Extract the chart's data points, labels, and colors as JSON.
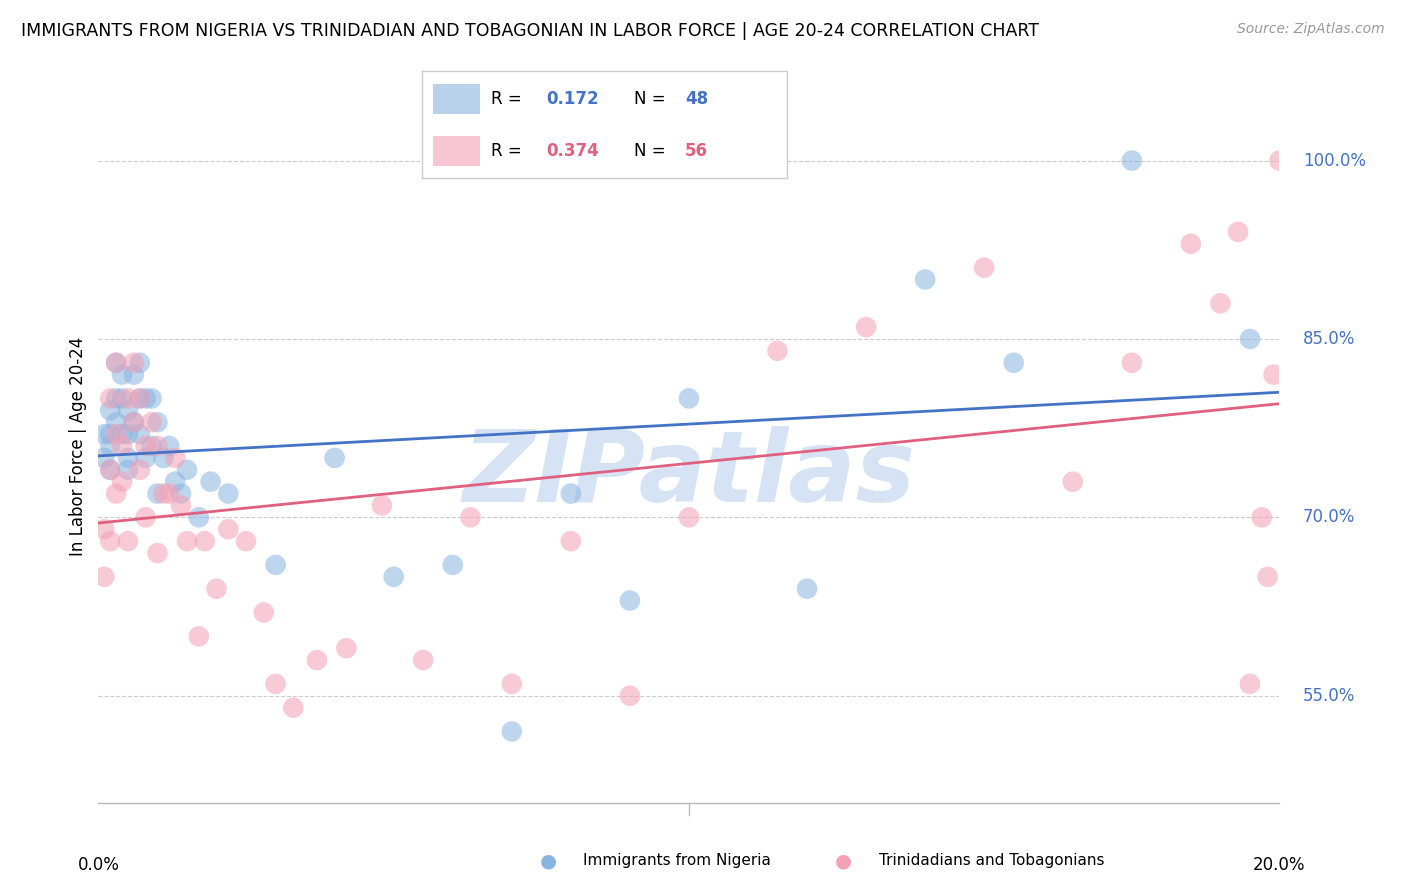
{
  "title": "IMMIGRANTS FROM NIGERIA VS TRINIDADIAN AND TOBAGONIAN IN LABOR FORCE | AGE 20-24 CORRELATION CHART",
  "source": "Source: ZipAtlas.com",
  "ylabel": "In Labor Force | Age 20-24",
  "yticks": [
    0.55,
    0.7,
    0.85,
    1.0
  ],
  "ytick_labels": [
    "55.0%",
    "70.0%",
    "85.0%",
    "100.0%"
  ],
  "xlim": [
    0.0,
    0.2
  ],
  "ylim": [
    0.46,
    1.06
  ],
  "nigeria_color": "#89B4E0",
  "tnt_color": "#F4A0B5",
  "nigeria_line_color": "#4472C4",
  "tnt_line_color": "#E06080",
  "watermark_text": "ZIPatlas",
  "watermark_color": "#C5D8F0",
  "nigeria_x": [
    0.001,
    0.001,
    0.002,
    0.002,
    0.002,
    0.002,
    0.003,
    0.003,
    0.003,
    0.004,
    0.004,
    0.004,
    0.005,
    0.005,
    0.005,
    0.005,
    0.006,
    0.006,
    0.007,
    0.007,
    0.007,
    0.008,
    0.008,
    0.009,
    0.009,
    0.01,
    0.01,
    0.011,
    0.012,
    0.013,
    0.014,
    0.015,
    0.017,
    0.019,
    0.022,
    0.03,
    0.04,
    0.05,
    0.06,
    0.07,
    0.08,
    0.09,
    0.1,
    0.12,
    0.14,
    0.155,
    0.175,
    0.195
  ],
  "nigeria_y": [
    0.77,
    0.75,
    0.79,
    0.77,
    0.76,
    0.74,
    0.83,
    0.8,
    0.78,
    0.82,
    0.8,
    0.77,
    0.79,
    0.77,
    0.75,
    0.74,
    0.82,
    0.78,
    0.83,
    0.8,
    0.77,
    0.8,
    0.75,
    0.8,
    0.76,
    0.78,
    0.72,
    0.75,
    0.76,
    0.73,
    0.72,
    0.74,
    0.7,
    0.73,
    0.72,
    0.66,
    0.75,
    0.65,
    0.66,
    0.52,
    0.72,
    0.63,
    0.8,
    0.64,
    0.9,
    0.83,
    1.0,
    0.85
  ],
  "tnt_x": [
    0.001,
    0.001,
    0.002,
    0.002,
    0.002,
    0.003,
    0.003,
    0.003,
    0.004,
    0.004,
    0.005,
    0.005,
    0.006,
    0.006,
    0.007,
    0.007,
    0.008,
    0.008,
    0.009,
    0.01,
    0.01,
    0.011,
    0.012,
    0.013,
    0.014,
    0.015,
    0.017,
    0.018,
    0.02,
    0.022,
    0.025,
    0.028,
    0.03,
    0.033,
    0.037,
    0.042,
    0.048,
    0.055,
    0.063,
    0.07,
    0.08,
    0.09,
    0.1,
    0.115,
    0.13,
    0.15,
    0.165,
    0.175,
    0.185,
    0.19,
    0.193,
    0.195,
    0.197,
    0.198,
    0.199,
    0.2
  ],
  "tnt_y": [
    0.69,
    0.65,
    0.8,
    0.74,
    0.68,
    0.83,
    0.77,
    0.72,
    0.76,
    0.73,
    0.8,
    0.68,
    0.83,
    0.78,
    0.8,
    0.74,
    0.76,
    0.7,
    0.78,
    0.76,
    0.67,
    0.72,
    0.72,
    0.75,
    0.71,
    0.68,
    0.6,
    0.68,
    0.64,
    0.69,
    0.68,
    0.62,
    0.56,
    0.54,
    0.58,
    0.59,
    0.71,
    0.58,
    0.7,
    0.56,
    0.68,
    0.55,
    0.7,
    0.84,
    0.86,
    0.91,
    0.73,
    0.83,
    0.93,
    0.88,
    0.94,
    0.56,
    0.7,
    0.65,
    0.82,
    1.0
  ]
}
